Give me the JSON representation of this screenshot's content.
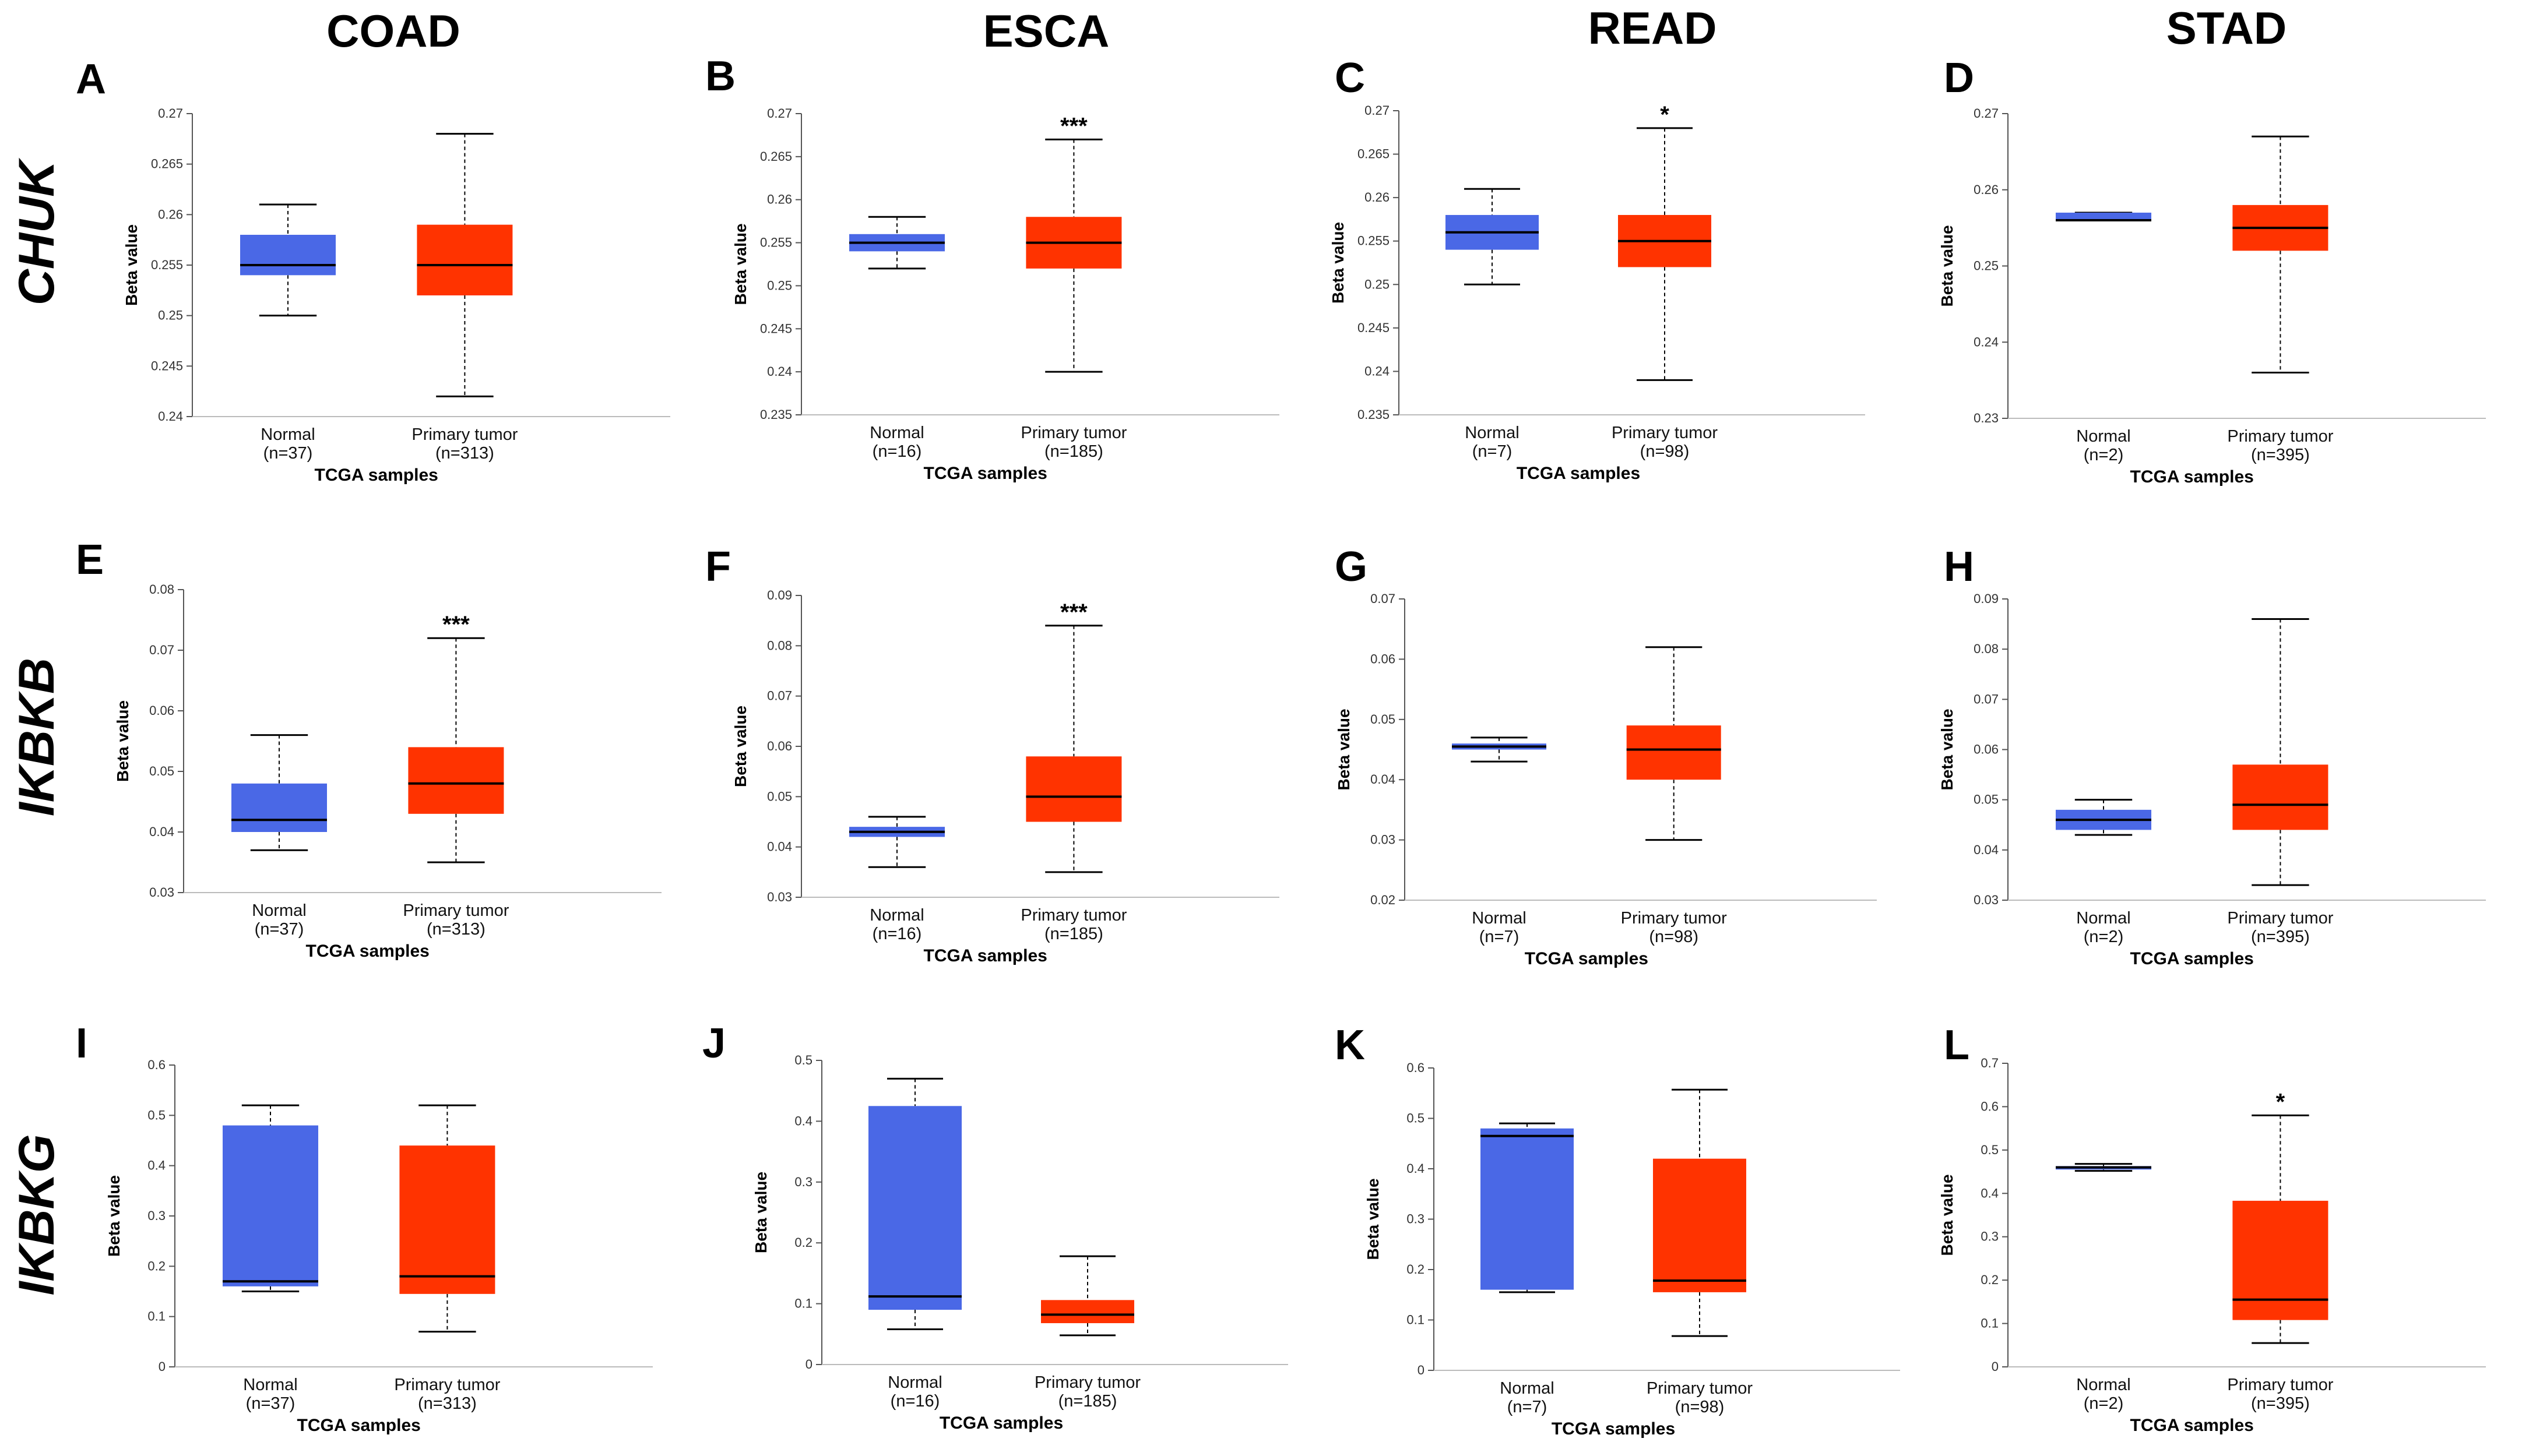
{
  "figure": {
    "column_titles": [
      "COAD",
      "ESCA",
      "READ",
      "STAD"
    ],
    "row_titles": [
      "CHUK",
      "IKBKB",
      "IKBKG"
    ],
    "colors": {
      "normal": "#4a68e6",
      "tumor": "#ff3300",
      "median": "#000000"
    }
  },
  "chart_data": [
    {
      "panel": "A",
      "type": "box",
      "ylabel": "Beta value",
      "xlabel": "TCGA samples",
      "ylim": [
        0.24,
        0.27
      ],
      "yticks": [
        "0.24",
        "0.245",
        "0.25",
        "0.255",
        "0.26",
        "0.265",
        "0.27"
      ],
      "yvals": [
        0.24,
        0.245,
        0.25,
        0.255,
        0.26,
        0.265,
        0.27
      ],
      "significance": "",
      "boxes": [
        {
          "label": "Normal",
          "n": "(n=37)",
          "min": 0.25,
          "q1": 0.254,
          "median": 0.255,
          "q3": 0.258,
          "max": 0.261
        },
        {
          "label": "Primary tumor",
          "n": "(n=313)",
          "min": 0.242,
          "q1": 0.252,
          "median": 0.255,
          "q3": 0.259,
          "max": 0.268
        }
      ]
    },
    {
      "panel": "B",
      "type": "box",
      "ylabel": "Beta value",
      "xlabel": "TCGA samples",
      "ylim": [
        0.235,
        0.27
      ],
      "yticks": [
        "0.235",
        "0.24",
        "0.245",
        "0.25",
        "0.255",
        "0.26",
        "0.265",
        "0.27"
      ],
      "yvals": [
        0.235,
        0.24,
        0.245,
        0.25,
        0.255,
        0.26,
        0.265,
        0.27
      ],
      "significance": "***",
      "boxes": [
        {
          "label": "Normal",
          "n": "(n=16)",
          "min": 0.252,
          "q1": 0.254,
          "median": 0.255,
          "q3": 0.256,
          "max": 0.258
        },
        {
          "label": "Primary tumor",
          "n": "(n=185)",
          "min": 0.24,
          "q1": 0.252,
          "median": 0.255,
          "q3": 0.258,
          "max": 0.267
        }
      ]
    },
    {
      "panel": "C",
      "type": "box",
      "ylabel": "Beta value",
      "xlabel": "TCGA samples",
      "ylim": [
        0.235,
        0.27
      ],
      "yticks": [
        "0.235",
        "0.24",
        "0.245",
        "0.25",
        "0.255",
        "0.26",
        "0.265",
        "0.27"
      ],
      "yvals": [
        0.235,
        0.24,
        0.245,
        0.25,
        0.255,
        0.26,
        0.265,
        0.27
      ],
      "significance": "*",
      "boxes": [
        {
          "label": "Normal",
          "n": "(n=7)",
          "min": 0.25,
          "q1": 0.254,
          "median": 0.256,
          "q3": 0.258,
          "max": 0.261
        },
        {
          "label": "Primary tumor",
          "n": "(n=98)",
          "min": 0.239,
          "q1": 0.252,
          "median": 0.255,
          "q3": 0.258,
          "max": 0.268
        }
      ]
    },
    {
      "panel": "D",
      "type": "box",
      "ylabel": "Beta value",
      "xlabel": "TCGA samples",
      "ylim": [
        0.23,
        0.27
      ],
      "yticks": [
        "0.23",
        "0.24",
        "0.25",
        "0.26",
        "0.27"
      ],
      "yvals": [
        0.23,
        0.24,
        0.25,
        0.26,
        0.27
      ],
      "significance": "",
      "boxes": [
        {
          "label": "Normal",
          "n": "(n=2)",
          "min": 0.256,
          "q1": 0.256,
          "median": 0.256,
          "q3": 0.257,
          "max": 0.257
        },
        {
          "label": "Primary tumor",
          "n": "(n=395)",
          "min": 0.236,
          "q1": 0.252,
          "median": 0.255,
          "q3": 0.258,
          "max": 0.267
        }
      ]
    },
    {
      "panel": "E",
      "type": "box",
      "ylabel": "Beta value",
      "xlabel": "TCGA samples",
      "ylim": [
        0.03,
        0.08
      ],
      "yticks": [
        "0.03",
        "0.04",
        "0.05",
        "0.06",
        "0.07",
        "0.08"
      ],
      "yvals": [
        0.03,
        0.04,
        0.05,
        0.06,
        0.07,
        0.08
      ],
      "significance": "***",
      "boxes": [
        {
          "label": "Normal",
          "n": "(n=37)",
          "min": 0.037,
          "q1": 0.04,
          "median": 0.042,
          "q3": 0.048,
          "max": 0.056
        },
        {
          "label": "Primary tumor",
          "n": "(n=313)",
          "min": 0.035,
          "q1": 0.043,
          "median": 0.048,
          "q3": 0.054,
          "max": 0.072
        }
      ]
    },
    {
      "panel": "F",
      "type": "box",
      "ylabel": "Beta value",
      "xlabel": "TCGA samples",
      "ylim": [
        0.03,
        0.09
      ],
      "yticks": [
        "0.03",
        "0.04",
        "0.05",
        "0.06",
        "0.07",
        "0.08",
        "0.09"
      ],
      "yvals": [
        0.03,
        0.04,
        0.05,
        0.06,
        0.07,
        0.08,
        0.09
      ],
      "significance": "***",
      "boxes": [
        {
          "label": "Normal",
          "n": "(n=16)",
          "min": 0.036,
          "q1": 0.042,
          "median": 0.043,
          "q3": 0.044,
          "max": 0.046
        },
        {
          "label": "Primary tumor",
          "n": "(n=185)",
          "min": 0.035,
          "q1": 0.045,
          "median": 0.05,
          "q3": 0.058,
          "max": 0.084
        }
      ]
    },
    {
      "panel": "G",
      "type": "box",
      "ylabel": "Beta value",
      "xlabel": "TCGA samples",
      "ylim": [
        0.02,
        0.07
      ],
      "yticks": [
        "0.02",
        "0.03",
        "0.04",
        "0.05",
        "0.06",
        "0.07"
      ],
      "yvals": [
        0.02,
        0.03,
        0.04,
        0.05,
        0.06,
        0.07
      ],
      "significance": "",
      "boxes": [
        {
          "label": "Normal",
          "n": "(n=7)",
          "min": 0.043,
          "q1": 0.045,
          "median": 0.0455,
          "q3": 0.046,
          "max": 0.047
        },
        {
          "label": "Primary tumor",
          "n": "(n=98)",
          "min": 0.03,
          "q1": 0.04,
          "median": 0.045,
          "q3": 0.049,
          "max": 0.062
        }
      ]
    },
    {
      "panel": "H",
      "type": "box",
      "ylabel": "Beta value",
      "xlabel": "TCGA samples",
      "ylim": [
        0.03,
        0.09
      ],
      "yticks": [
        "0.03",
        "0.04",
        "0.05",
        "0.06",
        "0.07",
        "0.08",
        "0.09"
      ],
      "yvals": [
        0.03,
        0.04,
        0.05,
        0.06,
        0.07,
        0.08,
        0.09
      ],
      "significance": "",
      "boxes": [
        {
          "label": "Normal",
          "n": "(n=2)",
          "min": 0.043,
          "q1": 0.044,
          "median": 0.046,
          "q3": 0.048,
          "max": 0.05
        },
        {
          "label": "Primary tumor",
          "n": "(n=395)",
          "min": 0.033,
          "q1": 0.044,
          "median": 0.049,
          "q3": 0.057,
          "max": 0.086
        }
      ]
    },
    {
      "panel": "I",
      "type": "box",
      "ylabel": "Beta value",
      "xlabel": "TCGA samples",
      "ylim": [
        0,
        0.6
      ],
      "yticks": [
        "0",
        "0.1",
        "0.2",
        "0.3",
        "0.4",
        "0.5",
        "0.6"
      ],
      "yvals": [
        0,
        0.1,
        0.2,
        0.3,
        0.4,
        0.5,
        0.6
      ],
      "significance": "",
      "boxes": [
        {
          "label": "Normal",
          "n": "(n=37)",
          "min": 0.15,
          "q1": 0.16,
          "median": 0.17,
          "q3": 0.48,
          "max": 0.52
        },
        {
          "label": "Primary tumor",
          "n": "(n=313)",
          "min": 0.07,
          "q1": 0.145,
          "median": 0.18,
          "q3": 0.44,
          "max": 0.52
        }
      ]
    },
    {
      "panel": "J",
      "type": "box",
      "ylabel": "Beta value",
      "xlabel": "TCGA samples",
      "ylim": [
        0,
        0.5
      ],
      "yticks": [
        "0",
        "0.1",
        "0.2",
        "0.3",
        "0.4",
        "0.5"
      ],
      "yvals": [
        0,
        0.1,
        0.2,
        0.3,
        0.4,
        0.5
      ],
      "significance": "",
      "boxes": [
        {
          "label": "Normal",
          "n": "(n=16)",
          "min": 0.058,
          "q1": 0.09,
          "median": 0.112,
          "q3": 0.425,
          "max": 0.47
        },
        {
          "label": "Primary tumor",
          "n": "(n=185)",
          "min": 0.048,
          "q1": 0.068,
          "median": 0.082,
          "q3": 0.106,
          "max": 0.178
        }
      ]
    },
    {
      "panel": "K",
      "type": "box",
      "ylabel": "Beta value",
      "xlabel": "TCGA samples",
      "ylim": [
        0,
        0.6
      ],
      "yticks": [
        "0",
        "0.1",
        "0.2",
        "0.3",
        "0.4",
        "0.5",
        "0.6"
      ],
      "yvals": [
        0,
        0.1,
        0.2,
        0.3,
        0.4,
        0.5,
        0.6
      ],
      "significance": "",
      "boxes": [
        {
          "label": "Normal",
          "n": "(n=7)",
          "min": 0.155,
          "q1": 0.16,
          "median": 0.465,
          "q3": 0.48,
          "max": 0.49
        },
        {
          "label": "Primary tumor",
          "n": "(n=98)",
          "min": 0.068,
          "q1": 0.155,
          "median": 0.178,
          "q3": 0.42,
          "max": 0.557
        }
      ]
    },
    {
      "panel": "L",
      "type": "box",
      "ylabel": "Beta value",
      "xlabel": "TCGA samples",
      "ylim": [
        0,
        0.7
      ],
      "yticks": [
        "0",
        "0.1",
        "0.2",
        "0.3",
        "0.4",
        "0.5",
        "0.6",
        "0.7"
      ],
      "yvals": [
        0,
        0.1,
        0.2,
        0.3,
        0.4,
        0.5,
        0.6,
        0.7
      ],
      "significance": "*",
      "boxes": [
        {
          "label": "Normal",
          "n": "(n=2)",
          "min": 0.452,
          "q1": 0.455,
          "median": 0.46,
          "q3": 0.463,
          "max": 0.468
        },
        {
          "label": "Primary tumor",
          "n": "(n=395)",
          "min": 0.055,
          "q1": 0.108,
          "median": 0.155,
          "q3": 0.383,
          "max": 0.58
        }
      ]
    }
  ]
}
